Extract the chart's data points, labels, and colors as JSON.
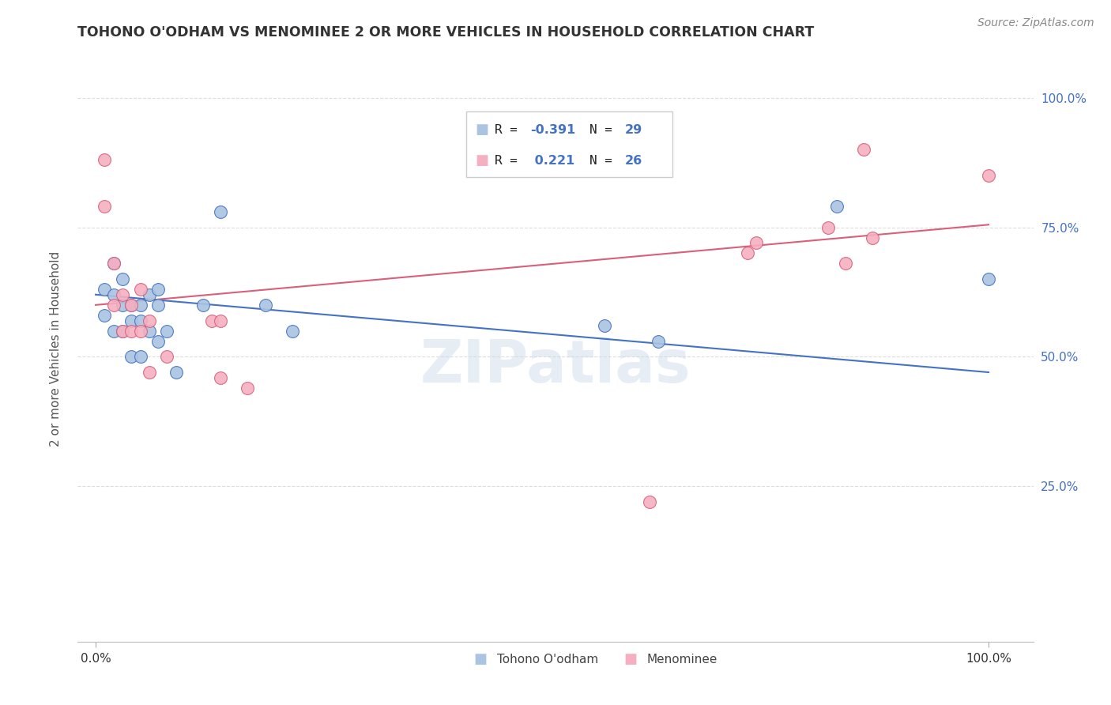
{
  "title": "TOHONO O'ODHAM VS MENOMINEE 2 OR MORE VEHICLES IN HOUSEHOLD CORRELATION CHART",
  "source": "Source: ZipAtlas.com",
  "ylabel": "2 or more Vehicles in Household",
  "xlim": [
    -0.02,
    1.05
  ],
  "ylim": [
    -0.05,
    1.08
  ],
  "xtick_labels": [
    "0.0%",
    "100.0%"
  ],
  "xtick_positions": [
    0.0,
    1.0
  ],
  "ytick_labels": [
    "25.0%",
    "50.0%",
    "75.0%",
    "100.0%"
  ],
  "ytick_positions": [
    0.25,
    0.5,
    0.75,
    1.0
  ],
  "watermark": "ZIPatlas",
  "legend_label_blue": "Tohono O'odham",
  "legend_label_pink": "Menominee",
  "blue_color": "#aac4e2",
  "pink_color": "#f5afc0",
  "line_blue": "#4472c4",
  "line_pink": "#d9607a",
  "blue_scatter_x": [
    0.01,
    0.01,
    0.02,
    0.02,
    0.02,
    0.03,
    0.03,
    0.03,
    0.04,
    0.04,
    0.04,
    0.05,
    0.05,
    0.05,
    0.06,
    0.06,
    0.07,
    0.07,
    0.07,
    0.08,
    0.09,
    0.12,
    0.14,
    0.19,
    0.22,
    0.57,
    0.63,
    0.83,
    1.0
  ],
  "blue_scatter_y": [
    0.63,
    0.58,
    0.68,
    0.62,
    0.55,
    0.65,
    0.6,
    0.55,
    0.6,
    0.57,
    0.5,
    0.6,
    0.57,
    0.5,
    0.62,
    0.55,
    0.63,
    0.6,
    0.53,
    0.55,
    0.47,
    0.6,
    0.78,
    0.6,
    0.55,
    0.56,
    0.53,
    0.79,
    0.65
  ],
  "pink_scatter_x": [
    0.01,
    0.01,
    0.02,
    0.02,
    0.03,
    0.03,
    0.04,
    0.04,
    0.05,
    0.05,
    0.06,
    0.06,
    0.08,
    0.13,
    0.14,
    0.14,
    0.17,
    0.62,
    0.73,
    0.74,
    0.82,
    0.84,
    0.86,
    0.87,
    1.0
  ],
  "pink_scatter_y": [
    0.88,
    0.79,
    0.68,
    0.6,
    0.62,
    0.55,
    0.6,
    0.55,
    0.63,
    0.55,
    0.57,
    0.47,
    0.5,
    0.57,
    0.57,
    0.46,
    0.44,
    0.22,
    0.7,
    0.72,
    0.75,
    0.68,
    0.9,
    0.73,
    0.85
  ],
  "blue_trendline": [
    0.62,
    0.47
  ],
  "pink_trendline": [
    0.6,
    0.755
  ],
  "grid_color": "#dddddd",
  "background_color": "#ffffff",
  "text_color": "#333333",
  "tick_color_right": "#4472c4",
  "title_fontsize": 12.5,
  "source_fontsize": 10,
  "marker_size": 130,
  "marker_edge_width": 0.8
}
